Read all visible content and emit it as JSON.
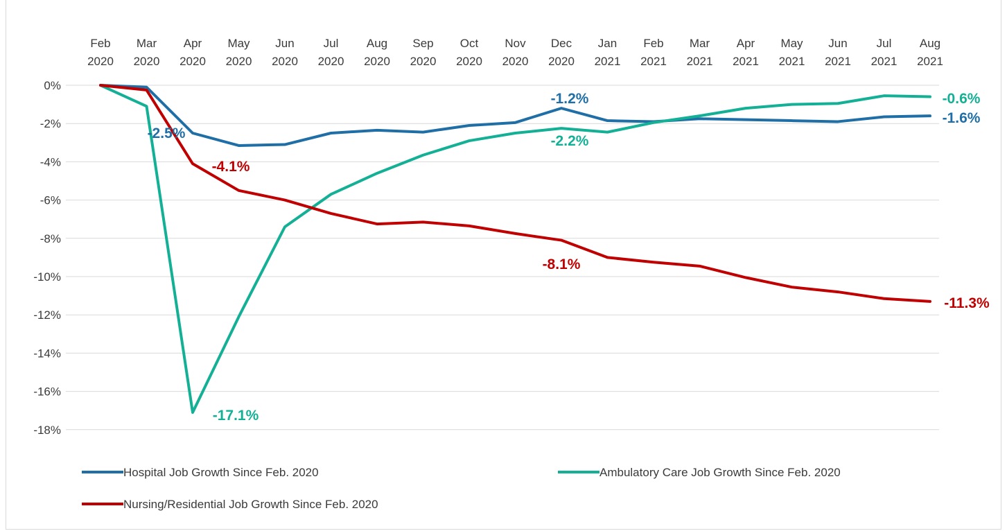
{
  "chart_data": {
    "type": "line",
    "title": "",
    "xlabel": "",
    "ylabel": "",
    "categories": [
      [
        "Feb",
        "2020"
      ],
      [
        "Mar",
        "2020"
      ],
      [
        "Apr",
        "2020"
      ],
      [
        "May",
        "2020"
      ],
      [
        "Jun",
        "2020"
      ],
      [
        "Jul",
        "2020"
      ],
      [
        "Aug",
        "2020"
      ],
      [
        "Sep",
        "2020"
      ],
      [
        "Oct",
        "2020"
      ],
      [
        "Nov",
        "2020"
      ],
      [
        "Dec",
        "2020"
      ],
      [
        "Jan",
        "2021"
      ],
      [
        "Feb",
        "2021"
      ],
      [
        "Mar",
        "2021"
      ],
      [
        "Apr",
        "2021"
      ],
      [
        "May",
        "2021"
      ],
      [
        "Jun",
        "2021"
      ],
      [
        "Jul",
        "2021"
      ],
      [
        "Aug",
        "2021"
      ]
    ],
    "ylim": [
      -18,
      0
    ],
    "yticks": [
      "0%",
      "-2%",
      "-4%",
      "-6%",
      "-8%",
      "-10%",
      "-12%",
      "-14%",
      "-16%",
      "-18%"
    ],
    "ytick_values": [
      0,
      -2,
      -4,
      -6,
      -8,
      -10,
      -12,
      -14,
      -16,
      -18
    ],
    "grid": true,
    "legend_position": "bottom",
    "series": [
      {
        "name": "Hospital Job Growth Since Feb. 2020",
        "color": "#1f6fa6",
        "values": [
          0,
          -0.1,
          -2.5,
          -3.15,
          -3.1,
          -2.5,
          -2.35,
          -2.45,
          -2.1,
          -1.95,
          -1.2,
          -1.85,
          -1.9,
          -1.75,
          -1.8,
          -1.85,
          -1.9,
          -1.65,
          -1.6
        ],
        "labels": [
          {
            "index": 2,
            "text": "-2.5%"
          },
          {
            "index": 10,
            "text": "-1.2%"
          },
          {
            "index": 18,
            "text": "-1.6%"
          }
        ]
      },
      {
        "name": "Ambulatory Care Job Growth Since Feb. 2020",
        "color": "#14b096",
        "values": [
          0,
          -1.1,
          -17.1,
          -12.1,
          -7.4,
          -5.7,
          -4.6,
          -3.65,
          -2.9,
          -2.5,
          -2.25,
          -2.45,
          -1.95,
          -1.6,
          -1.2,
          -1.0,
          -0.95,
          -0.55,
          -0.6
        ],
        "labels": [
          {
            "index": 2,
            "text": "-17.1%"
          },
          {
            "index": 10,
            "text": "-2.2%"
          },
          {
            "index": 18,
            "text": "-0.6%"
          }
        ]
      },
      {
        "name": "Nursing/Residential Job Growth Since Feb. 2020",
        "color": "#c00000",
        "values": [
          0,
          -0.25,
          -4.1,
          -5.5,
          -6.0,
          -6.7,
          -7.25,
          -7.15,
          -7.35,
          -7.75,
          -8.1,
          -9.0,
          -9.25,
          -9.45,
          -10.05,
          -10.55,
          -10.8,
          -11.15,
          -11.3
        ],
        "labels": [
          {
            "index": 2,
            "text": "-4.1%"
          },
          {
            "index": 10,
            "text": "-8.1%"
          },
          {
            "index": 18,
            "text": "-11.3%"
          }
        ]
      }
    ]
  }
}
